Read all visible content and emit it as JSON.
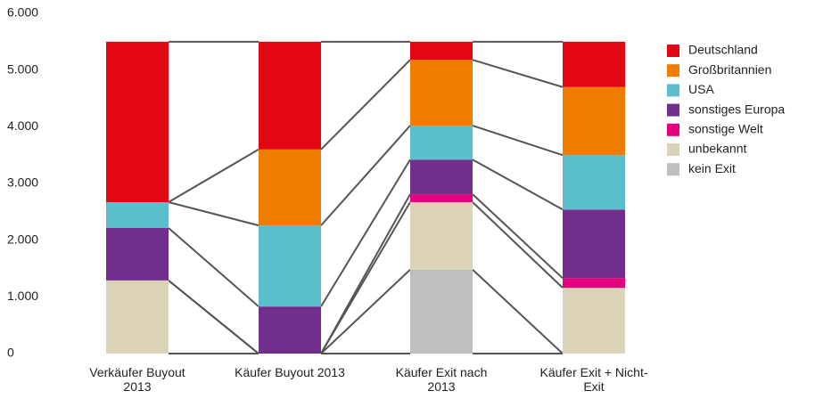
{
  "chart_data": {
    "type": "stacked_bar",
    "categories": [
      "Verkäufer Buyout 2013",
      "Käufer Buyout 2013",
      "Käufer Exit nach 2013",
      "Käufer Exit + Nicht-Exit"
    ],
    "series": [
      {
        "name": "kein Exit",
        "color": "#bfbfbf",
        "values": [
          0,
          0,
          1480,
          0
        ]
      },
      {
        "name": "unbekannt",
        "color": "#dbd3b8",
        "values": [
          1290,
          0,
          1190,
          1160
        ]
      },
      {
        "name": "sonstige Welt",
        "color": "#e5007d",
        "values": [
          0,
          0,
          140,
          170
        ]
      },
      {
        "name": "sonstiges Europa",
        "color": "#6f2f8a",
        "values": [
          925,
          830,
          610,
          1210
        ]
      },
      {
        "name": "USA",
        "color": "#5bbfcb",
        "values": [
          455,
          1430,
          600,
          960
        ]
      },
      {
        "name": "Großbritannien",
        "color": "#f07d00",
        "values": [
          0,
          1340,
          1160,
          1200
        ]
      },
      {
        "name": "Deutschland",
        "color": "#e30613",
        "values": [
          2830,
          1900,
          320,
          800
        ]
      }
    ],
    "ylim": [
      0,
      6000
    ],
    "yticks": [
      0,
      {
        "value": 1000,
        "label": "1.000"
      },
      {
        "value": 2000,
        "label": "2.000"
      },
      {
        "value": 3000,
        "label": "3.000"
      },
      {
        "value": 4000,
        "label": "4.000"
      },
      {
        "value": 5000,
        "label": "5.000"
      },
      {
        "value": 6000,
        "label": "6.000"
      }
    ],
    "connectors": true,
    "connector_color": "#555555"
  }
}
